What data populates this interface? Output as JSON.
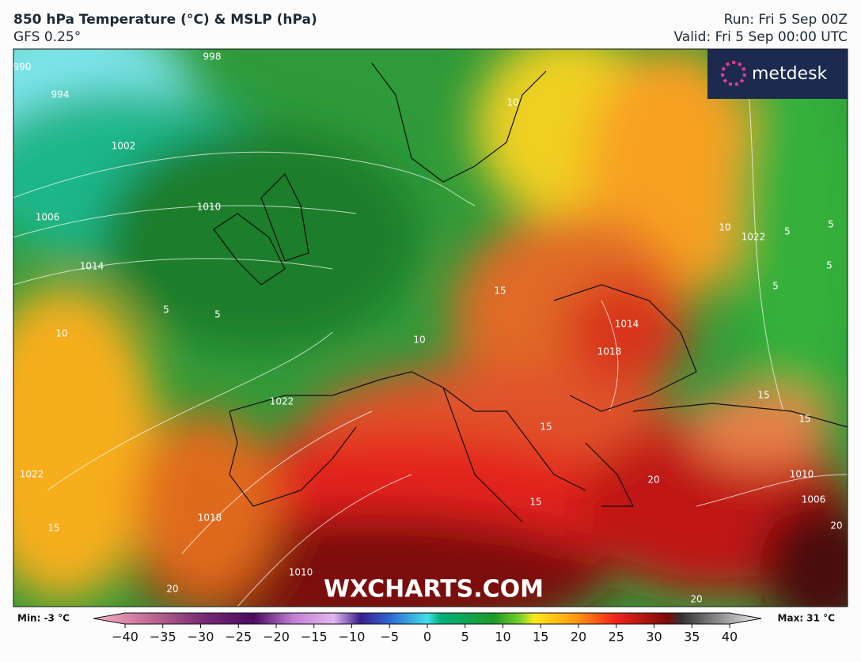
{
  "header": {
    "title": "850 hPa Temperature (°C) & MSLP (hPa)",
    "model": "GFS 0.25°",
    "run": "Run: Fri 5 Sep 00Z",
    "valid": "Valid: Fri 5 Sep 00:00 UTC"
  },
  "brand": "metdesk",
  "watermark": "WXCHARTS.COM",
  "contour_labels": [
    "990",
    "994",
    "998",
    "1002",
    "1006",
    "1010",
    "1014",
    "10",
    "5",
    "5",
    "1022",
    "1022",
    "15",
    "1018",
    "20",
    "1010",
    "10",
    "10",
    "5",
    "5",
    "1022",
    "5",
    "5",
    "1014",
    "1018",
    "15",
    "15",
    "15",
    "1010",
    "1006",
    "20",
    "20",
    "15",
    "20",
    "15",
    "10"
  ],
  "legend": {
    "min": "Min: -3 °C",
    "max": "Max: 31 °C",
    "ticks": [
      "−40",
      "−35",
      "−30",
      "−25",
      "−20",
      "−15",
      "−10",
      "−5",
      "0",
      "5",
      "10",
      "15",
      "20",
      "25",
      "30",
      "35",
      "40"
    ]
  }
}
